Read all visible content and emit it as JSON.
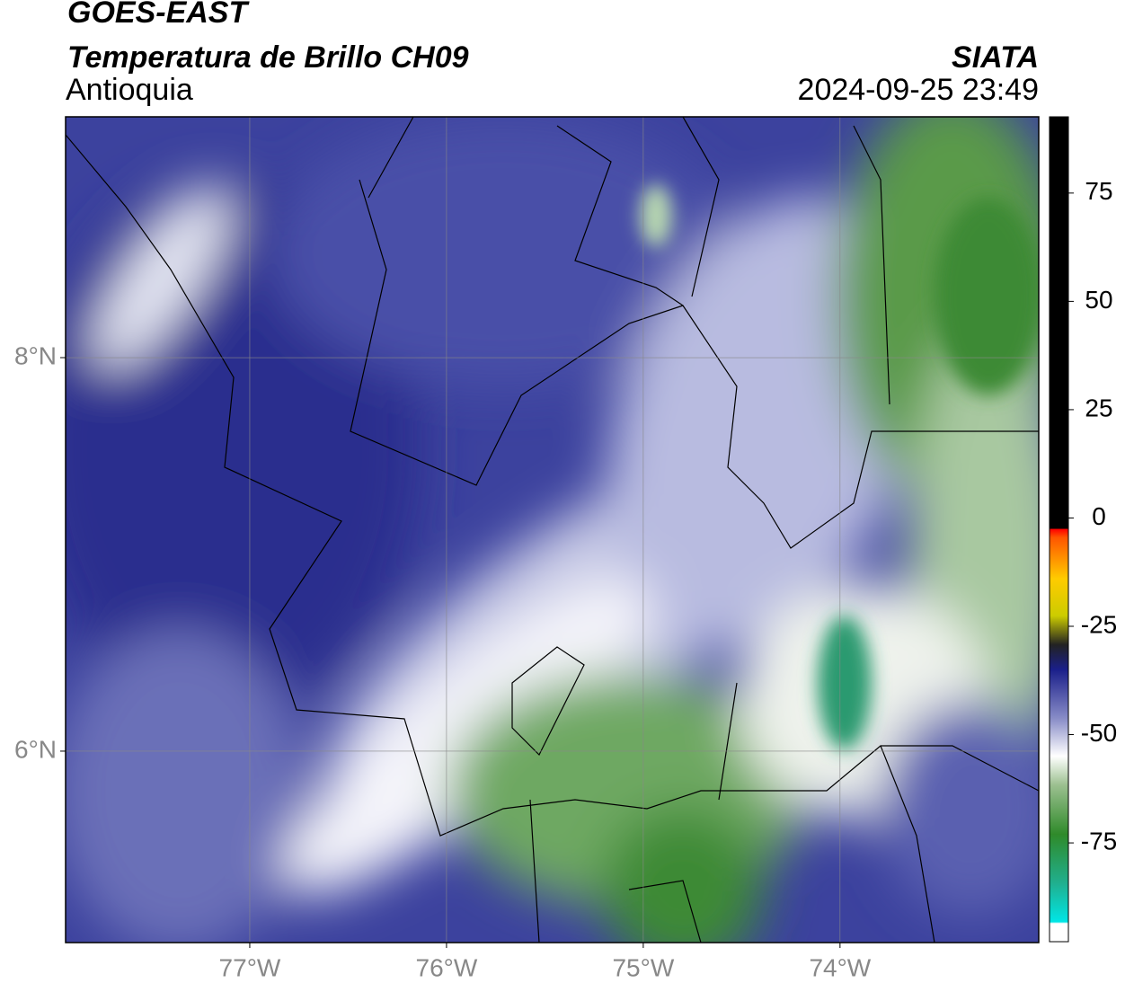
{
  "header": {
    "satellite": "GOES-EAST",
    "product": "Temperatura de Brillo CH09",
    "region": "Antioquia",
    "source": "SIATA",
    "datetime": "2024-09-25 23:49"
  },
  "map": {
    "xlim": [
      -77.936,
      -72.99
    ],
    "ylim": [
      5.027,
      9.224
    ],
    "xticks": [
      {
        "value": -77,
        "label": "77°W"
      },
      {
        "value": -76,
        "label": "76°W"
      },
      {
        "value": -75,
        "label": "75°W"
      },
      {
        "value": -74,
        "label": "74°W"
      }
    ],
    "yticks": [
      {
        "value": 8,
        "label": "8°N"
      },
      {
        "value": 6,
        "label": "6°N"
      }
    ]
  },
  "colorbar": {
    "lim": [
      -97.8,
      92.6
    ],
    "ticks": [
      -75,
      -50,
      -25,
      0,
      25,
      50,
      75
    ]
  }
}
